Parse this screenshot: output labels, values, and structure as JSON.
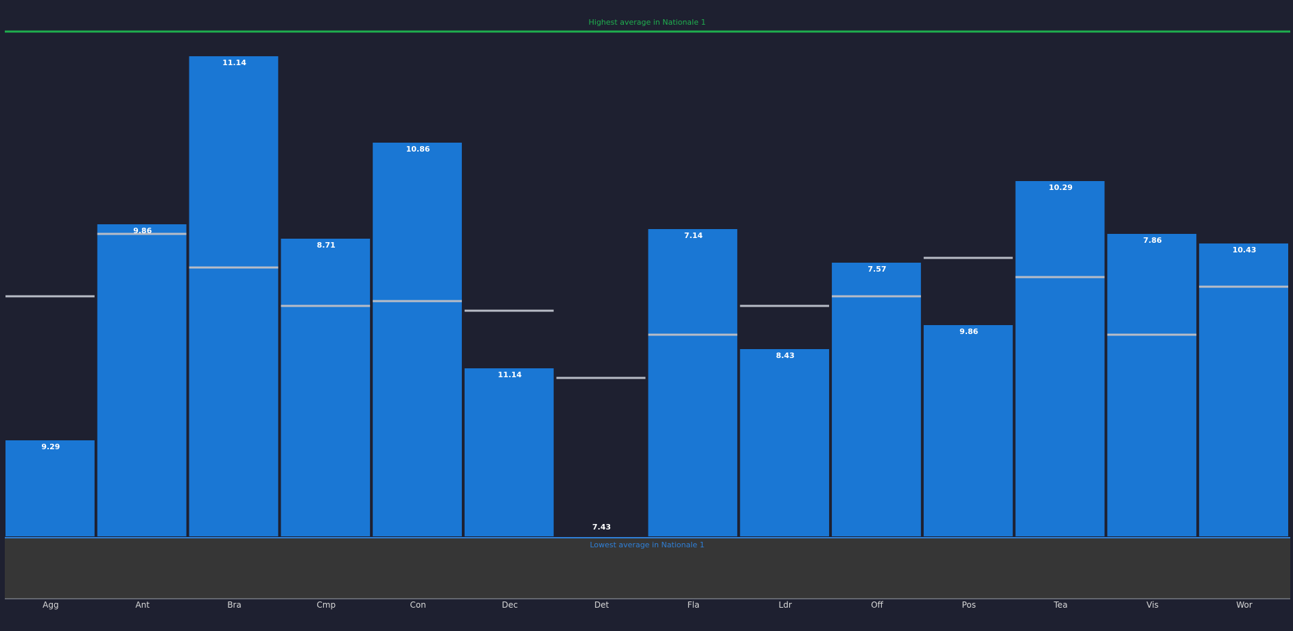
{
  "chart_data": {
    "type": "bar",
    "categories": [
      "Agg",
      "Ant",
      "Bra",
      "Cmp",
      "Con",
      "Dec",
      "Det",
      "Fla",
      "Ldr",
      "Off",
      "Pos",
      "Tea",
      "Vis",
      "Wor"
    ],
    "series": [
      {
        "values": [
          9.29,
          9.86,
          11.14,
          8.71,
          10.86,
          11.14,
          7.43,
          7.14,
          8.43,
          7.57,
          9.86,
          10.29,
          7.86,
          10.43
        ]
      }
    ],
    "bar_fill_fraction": [
      0.2,
      0.65,
      1.0,
      0.62,
      0.82,
      0.35,
      0.0,
      0.64,
      0.39,
      0.57,
      0.44,
      0.74,
      0.63,
      0.61
    ],
    "average_marker_fraction": [
      0.5,
      0.63,
      0.56,
      0.48,
      0.49,
      0.47,
      0.33,
      0.42,
      0.48,
      0.5,
      0.58,
      0.54,
      0.42,
      0.52
    ],
    "reference_lines": {
      "top_label": "Highest average in Nationale 1",
      "bottom_label": "Lowest average in Nationale 1"
    },
    "colors": {
      "background": "#1e2030",
      "bar": "#1a77d4",
      "marker": "#b8bcc6",
      "top_line": "#1fae4e",
      "bottom_line": "#2f7fd6",
      "lower_band": "#363636"
    }
  }
}
